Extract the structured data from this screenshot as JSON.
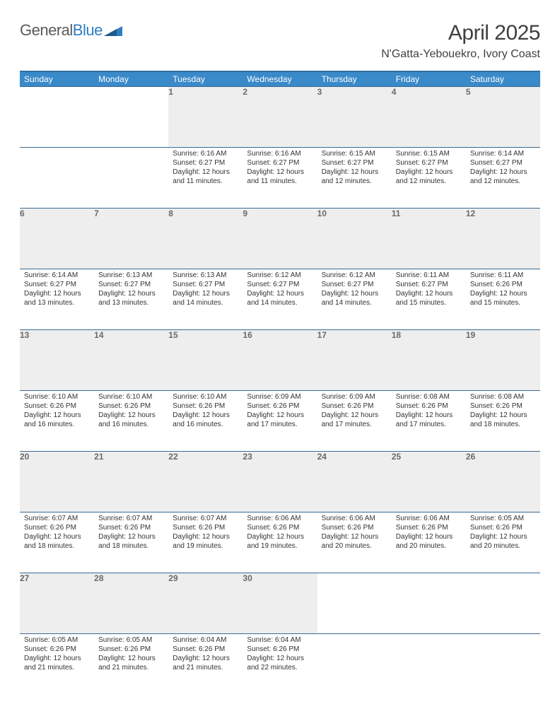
{
  "logo": {
    "text1": "General",
    "text2": "Blue"
  },
  "title": "April 2025",
  "location": "N'Gatta-Yebouekro, Ivory Coast",
  "colors": {
    "header_bg": "#3a89c9",
    "header_border": "#2f6fa3",
    "row_border": "#3a6a95",
    "daynum_bg": "#eeeeee",
    "text": "#333333"
  },
  "weekdays": [
    "Sunday",
    "Monday",
    "Tuesday",
    "Wednesday",
    "Thursday",
    "Friday",
    "Saturday"
  ],
  "first_weekday_index": 2,
  "days": [
    {
      "n": 1,
      "sr": "6:16 AM",
      "ss": "6:27 PM",
      "dl": "12 hours and 11 minutes."
    },
    {
      "n": 2,
      "sr": "6:16 AM",
      "ss": "6:27 PM",
      "dl": "12 hours and 11 minutes."
    },
    {
      "n": 3,
      "sr": "6:15 AM",
      "ss": "6:27 PM",
      "dl": "12 hours and 12 minutes."
    },
    {
      "n": 4,
      "sr": "6:15 AM",
      "ss": "6:27 PM",
      "dl": "12 hours and 12 minutes."
    },
    {
      "n": 5,
      "sr": "6:14 AM",
      "ss": "6:27 PM",
      "dl": "12 hours and 12 minutes."
    },
    {
      "n": 6,
      "sr": "6:14 AM",
      "ss": "6:27 PM",
      "dl": "12 hours and 13 minutes."
    },
    {
      "n": 7,
      "sr": "6:13 AM",
      "ss": "6:27 PM",
      "dl": "12 hours and 13 minutes."
    },
    {
      "n": 8,
      "sr": "6:13 AM",
      "ss": "6:27 PM",
      "dl": "12 hours and 14 minutes."
    },
    {
      "n": 9,
      "sr": "6:12 AM",
      "ss": "6:27 PM",
      "dl": "12 hours and 14 minutes."
    },
    {
      "n": 10,
      "sr": "6:12 AM",
      "ss": "6:27 PM",
      "dl": "12 hours and 14 minutes."
    },
    {
      "n": 11,
      "sr": "6:11 AM",
      "ss": "6:27 PM",
      "dl": "12 hours and 15 minutes."
    },
    {
      "n": 12,
      "sr": "6:11 AM",
      "ss": "6:26 PM",
      "dl": "12 hours and 15 minutes."
    },
    {
      "n": 13,
      "sr": "6:10 AM",
      "ss": "6:26 PM",
      "dl": "12 hours and 16 minutes."
    },
    {
      "n": 14,
      "sr": "6:10 AM",
      "ss": "6:26 PM",
      "dl": "12 hours and 16 minutes."
    },
    {
      "n": 15,
      "sr": "6:10 AM",
      "ss": "6:26 PM",
      "dl": "12 hours and 16 minutes."
    },
    {
      "n": 16,
      "sr": "6:09 AM",
      "ss": "6:26 PM",
      "dl": "12 hours and 17 minutes."
    },
    {
      "n": 17,
      "sr": "6:09 AM",
      "ss": "6:26 PM",
      "dl": "12 hours and 17 minutes."
    },
    {
      "n": 18,
      "sr": "6:08 AM",
      "ss": "6:26 PM",
      "dl": "12 hours and 17 minutes."
    },
    {
      "n": 19,
      "sr": "6:08 AM",
      "ss": "6:26 PM",
      "dl": "12 hours and 18 minutes."
    },
    {
      "n": 20,
      "sr": "6:07 AM",
      "ss": "6:26 PM",
      "dl": "12 hours and 18 minutes."
    },
    {
      "n": 21,
      "sr": "6:07 AM",
      "ss": "6:26 PM",
      "dl": "12 hours and 18 minutes."
    },
    {
      "n": 22,
      "sr": "6:07 AM",
      "ss": "6:26 PM",
      "dl": "12 hours and 19 minutes."
    },
    {
      "n": 23,
      "sr": "6:06 AM",
      "ss": "6:26 PM",
      "dl": "12 hours and 19 minutes."
    },
    {
      "n": 24,
      "sr": "6:06 AM",
      "ss": "6:26 PM",
      "dl": "12 hours and 20 minutes."
    },
    {
      "n": 25,
      "sr": "6:06 AM",
      "ss": "6:26 PM",
      "dl": "12 hours and 20 minutes."
    },
    {
      "n": 26,
      "sr": "6:05 AM",
      "ss": "6:26 PM",
      "dl": "12 hours and 20 minutes."
    },
    {
      "n": 27,
      "sr": "6:05 AM",
      "ss": "6:26 PM",
      "dl": "12 hours and 21 minutes."
    },
    {
      "n": 28,
      "sr": "6:05 AM",
      "ss": "6:26 PM",
      "dl": "12 hours and 21 minutes."
    },
    {
      "n": 29,
      "sr": "6:04 AM",
      "ss": "6:26 PM",
      "dl": "12 hours and 21 minutes."
    },
    {
      "n": 30,
      "sr": "6:04 AM",
      "ss": "6:26 PM",
      "dl": "12 hours and 22 minutes."
    }
  ],
  "labels": {
    "sunrise": "Sunrise:",
    "sunset": "Sunset:",
    "daylight": "Daylight:"
  }
}
